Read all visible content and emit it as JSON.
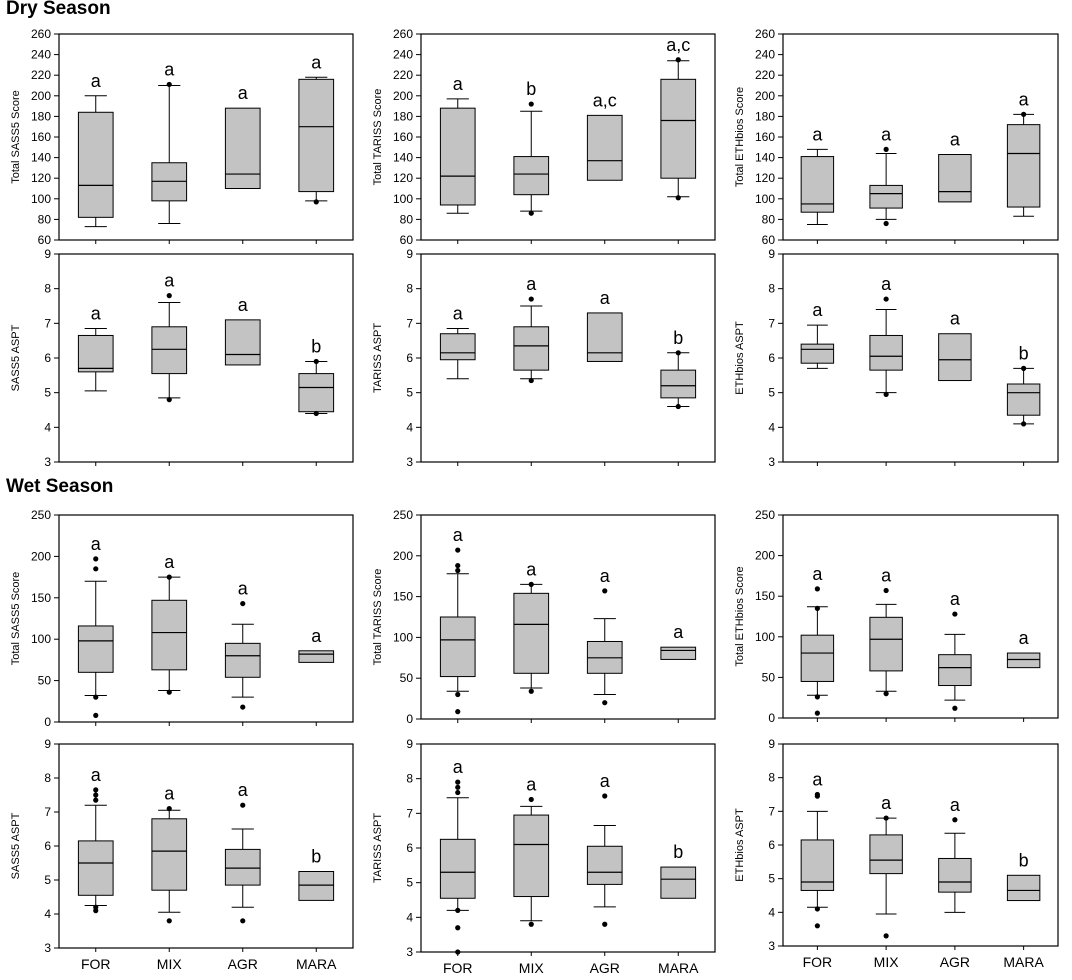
{
  "sections": {
    "dry": "Dry Season",
    "wet": "Wet Season"
  },
  "chart_data": [
    {
      "id": "dry-sass5-total",
      "type": "boxplot",
      "season": "Dry Season",
      "ylabel": "Total SASS5 Score",
      "ylim": [
        60,
        260
      ],
      "ytick_step": 20,
      "xtick_labels": [
        "",
        "",
        "",
        ""
      ],
      "boxes": [
        {
          "category": "FOR",
          "min": 73,
          "q1": 82,
          "median": 113,
          "q3": 184,
          "max": 200,
          "outliers": [],
          "letter": "a"
        },
        {
          "category": "MIX",
          "min": 76,
          "q1": 98,
          "median": 117,
          "q3": 135,
          "max": 210,
          "outliers": [
            211
          ],
          "letter": "a"
        },
        {
          "category": "AGR",
          "min": 110,
          "q1": 110,
          "median": 124,
          "q3": 188,
          "max": 188,
          "outliers": [],
          "letter": "a"
        },
        {
          "category": "MARA",
          "min": 98,
          "q1": 107,
          "median": 170,
          "q3": 216,
          "max": 218,
          "outliers": [
            97
          ],
          "letter": "a"
        }
      ]
    },
    {
      "id": "dry-tariss-total",
      "type": "boxplot",
      "season": "Dry Season",
      "ylabel": "Total TARISS Score",
      "ylim": [
        60,
        260
      ],
      "ytick_step": 20,
      "xtick_labels": [
        "",
        "",
        "",
        ""
      ],
      "boxes": [
        {
          "category": "FOR",
          "min": 86,
          "q1": 94,
          "median": 122,
          "q3": 188,
          "max": 197,
          "outliers": [],
          "letter": "a"
        },
        {
          "category": "MIX",
          "min": 88,
          "q1": 104,
          "median": 124,
          "q3": 141,
          "max": 185,
          "outliers": [
            192,
            86
          ],
          "letter": "b"
        },
        {
          "category": "AGR",
          "min": 118,
          "q1": 118,
          "median": 137,
          "q3": 181,
          "max": 181,
          "outliers": [],
          "letter": "a,c"
        },
        {
          "category": "MARA",
          "min": 102,
          "q1": 120,
          "median": 176,
          "q3": 216,
          "max": 234,
          "outliers": [
            235,
            101
          ],
          "letter": "a,c"
        }
      ]
    },
    {
      "id": "dry-ethbios-total",
      "type": "boxplot",
      "season": "Dry Season",
      "ylabel": "Total ETHbios Score",
      "ylim": [
        60,
        260
      ],
      "ytick_step": 20,
      "xtick_labels": [
        "",
        "",
        "",
        ""
      ],
      "boxes": [
        {
          "category": "FOR",
          "min": 75,
          "q1": 87,
          "median": 95,
          "q3": 141,
          "max": 148,
          "outliers": [],
          "letter": "a"
        },
        {
          "category": "MIX",
          "min": 80,
          "q1": 91,
          "median": 105,
          "q3": 113,
          "max": 144,
          "outliers": [
            148,
            76
          ],
          "letter": "a"
        },
        {
          "category": "AGR",
          "min": 97,
          "q1": 97,
          "median": 107,
          "q3": 143,
          "max": 143,
          "outliers": [],
          "letter": "a"
        },
        {
          "category": "MARA",
          "min": 83,
          "q1": 92,
          "median": 144,
          "q3": 172,
          "max": 182,
          "outliers": [
            182
          ],
          "letter": "a"
        }
      ]
    },
    {
      "id": "dry-sass5-aspt",
      "type": "boxplot",
      "season": "Dry Season",
      "ylabel": "SASS5 ASPT",
      "ylim": [
        3,
        9
      ],
      "ytick_step": 1,
      "xtick_labels": [
        "",
        "",
        "",
        ""
      ],
      "boxes": [
        {
          "category": "FOR",
          "min": 5.05,
          "q1": 5.6,
          "median": 5.7,
          "q3": 6.65,
          "max": 6.85,
          "outliers": [],
          "letter": "a"
        },
        {
          "category": "MIX",
          "min": 4.85,
          "q1": 5.55,
          "median": 6.25,
          "q3": 6.9,
          "max": 7.6,
          "outliers": [
            7.8,
            4.8
          ],
          "letter": "a"
        },
        {
          "category": "AGR",
          "min": 5.8,
          "q1": 5.8,
          "median": 6.1,
          "q3": 7.1,
          "max": 7.1,
          "outliers": [],
          "letter": "a"
        },
        {
          "category": "MARA",
          "min": 4.4,
          "q1": 4.45,
          "median": 5.15,
          "q3": 5.55,
          "max": 5.9,
          "outliers": [
            5.9,
            4.4
          ],
          "letter": "b"
        }
      ]
    },
    {
      "id": "dry-tariss-aspt",
      "type": "boxplot",
      "season": "Dry Season",
      "ylabel": "TARISS ASPT",
      "ylim": [
        3,
        9
      ],
      "ytick_step": 1,
      "xtick_labels": [
        "",
        "",
        "",
        ""
      ],
      "boxes": [
        {
          "category": "FOR",
          "min": 5.4,
          "q1": 5.95,
          "median": 6.15,
          "q3": 6.7,
          "max": 6.85,
          "outliers": [],
          "letter": "a"
        },
        {
          "category": "MIX",
          "min": 5.4,
          "q1": 5.65,
          "median": 6.35,
          "q3": 6.9,
          "max": 7.5,
          "outliers": [
            7.7,
            5.35
          ],
          "letter": "a"
        },
        {
          "category": "AGR",
          "min": 5.9,
          "q1": 5.9,
          "median": 6.15,
          "q3": 7.3,
          "max": 7.3,
          "outliers": [],
          "letter": "a"
        },
        {
          "category": "MARA",
          "min": 4.6,
          "q1": 4.85,
          "median": 5.2,
          "q3": 5.65,
          "max": 6.15,
          "outliers": [
            6.15,
            4.6
          ],
          "letter": "b"
        }
      ]
    },
    {
      "id": "dry-ethbios-aspt",
      "type": "boxplot",
      "season": "Dry Season",
      "ylabel": "ETHbios ASPT",
      "ylim": [
        3,
        9
      ],
      "ytick_step": 1,
      "xtick_labels": [
        "",
        "",
        "",
        ""
      ],
      "boxes": [
        {
          "category": "FOR",
          "min": 5.7,
          "q1": 5.85,
          "median": 6.25,
          "q3": 6.4,
          "max": 6.95,
          "outliers": [],
          "letter": "a"
        },
        {
          "category": "MIX",
          "min": 5.0,
          "q1": 5.65,
          "median": 6.05,
          "q3": 6.65,
          "max": 7.4,
          "outliers": [
            7.7,
            4.95
          ],
          "letter": "a"
        },
        {
          "category": "AGR",
          "min": 5.35,
          "q1": 5.35,
          "median": 5.95,
          "q3": 6.7,
          "max": 6.7,
          "outliers": [],
          "letter": "a"
        },
        {
          "category": "MARA",
          "min": 4.1,
          "q1": 4.35,
          "median": 5.0,
          "q3": 5.25,
          "max": 5.7,
          "outliers": [
            5.7,
            4.1
          ],
          "letter": "b"
        }
      ]
    },
    {
      "id": "wet-sass5-total",
      "type": "boxplot",
      "season": "Wet Season",
      "ylabel": "Total SASS5 Score",
      "ylim": [
        0,
        250
      ],
      "ytick_step": 50,
      "xtick_labels": [
        "",
        "",
        "",
        ""
      ],
      "boxes": [
        {
          "category": "FOR",
          "min": 32,
          "q1": 60,
          "median": 98,
          "q3": 116,
          "max": 170,
          "outliers": [
            197,
            185,
            30,
            8
          ],
          "letter": "a"
        },
        {
          "category": "MIX",
          "min": 38,
          "q1": 63,
          "median": 108,
          "q3": 147,
          "max": 175,
          "outliers": [
            175,
            36
          ],
          "letter": "a"
        },
        {
          "category": "AGR",
          "min": 30,
          "q1": 54,
          "median": 80,
          "q3": 95,
          "max": 118,
          "outliers": [
            143,
            18
          ],
          "letter": "a"
        },
        {
          "category": "MARA",
          "min": 72,
          "q1": 72,
          "median": 82,
          "q3": 86,
          "max": 86,
          "outliers": [],
          "letter": "a"
        }
      ]
    },
    {
      "id": "wet-tariss-total",
      "type": "boxplot",
      "season": "Wet Season",
      "ylabel": "Total TARISS Score",
      "ylim": [
        0,
        250
      ],
      "ytick_step": 50,
      "xtick_labels": [
        "",
        "",
        "",
        ""
      ],
      "boxes": [
        {
          "category": "FOR",
          "min": 34,
          "q1": 52,
          "median": 97,
          "q3": 125,
          "max": 178,
          "outliers": [
            207,
            188,
            182,
            30,
            9
          ],
          "letter": "a"
        },
        {
          "category": "MIX",
          "min": 38,
          "q1": 56,
          "median": 116,
          "q3": 154,
          "max": 165,
          "outliers": [
            165,
            34
          ],
          "letter": "a"
        },
        {
          "category": "AGR",
          "min": 30,
          "q1": 56,
          "median": 75,
          "q3": 95,
          "max": 123,
          "outliers": [
            157,
            20
          ],
          "letter": "a"
        },
        {
          "category": "MARA",
          "min": 73,
          "q1": 73,
          "median": 84,
          "q3": 88,
          "max": 88,
          "outliers": [],
          "letter": "a"
        }
      ]
    },
    {
      "id": "wet-ethbios-total",
      "type": "boxplot",
      "season": "Wet Season",
      "ylabel": "Total ETHbios Score",
      "ylim": [
        0,
        250
      ],
      "ytick_step": 50,
      "xtick_labels": [
        "",
        "",
        "",
        ""
      ],
      "boxes": [
        {
          "category": "FOR",
          "min": 28,
          "q1": 45,
          "median": 80,
          "q3": 102,
          "max": 137,
          "outliers": [
            159,
            135,
            26,
            6
          ],
          "letter": "a"
        },
        {
          "category": "MIX",
          "min": 33,
          "q1": 58,
          "median": 97,
          "q3": 124,
          "max": 140,
          "outliers": [
            157,
            30
          ],
          "letter": "a"
        },
        {
          "category": "AGR",
          "min": 22,
          "q1": 40,
          "median": 62,
          "q3": 78,
          "max": 103,
          "outliers": [
            128,
            12
          ],
          "letter": "a"
        },
        {
          "category": "MARA",
          "min": 62,
          "q1": 62,
          "median": 72,
          "q3": 80,
          "max": 80,
          "outliers": [],
          "letter": "a"
        }
      ]
    },
    {
      "id": "wet-sass5-aspt",
      "type": "boxplot",
      "season": "Wet Season",
      "ylabel": "SASS5 ASPT",
      "ylim": [
        3,
        9
      ],
      "ytick_step": 1,
      "xtick_labels": [
        "FOR",
        "MIX",
        "AGR",
        "MARA"
      ],
      "boxes": [
        {
          "category": "FOR",
          "min": 4.25,
          "q1": 4.55,
          "median": 5.5,
          "q3": 6.15,
          "max": 7.2,
          "outliers": [
            7.65,
            7.5,
            7.35,
            4.2,
            4.1
          ],
          "letter": "a"
        },
        {
          "category": "MIX",
          "min": 4.05,
          "q1": 4.7,
          "median": 5.85,
          "q3": 6.8,
          "max": 7.05,
          "outliers": [
            7.1,
            3.8
          ],
          "letter": "a"
        },
        {
          "category": "AGR",
          "min": 4.2,
          "q1": 4.85,
          "median": 5.35,
          "q3": 5.9,
          "max": 6.5,
          "outliers": [
            7.2,
            3.8
          ],
          "letter": "a"
        },
        {
          "category": "MARA",
          "min": 4.4,
          "q1": 4.4,
          "median": 4.85,
          "q3": 5.25,
          "max": 5.25,
          "outliers": [],
          "letter": "b"
        }
      ]
    },
    {
      "id": "wet-tariss-aspt",
      "type": "boxplot",
      "season": "Wet Season",
      "ylabel": "TARISS ASPT",
      "ylim": [
        3,
        9
      ],
      "ytick_step": 1,
      "xtick_labels": [
        "FOR",
        "MIX",
        "AGR",
        "MARA"
      ],
      "boxes": [
        {
          "category": "FOR",
          "min": 4.2,
          "q1": 4.55,
          "median": 5.3,
          "q3": 6.25,
          "max": 7.45,
          "outliers": [
            7.9,
            7.75,
            7.6,
            4.2,
            3.7,
            3.0
          ],
          "letter": "a"
        },
        {
          "category": "MIX",
          "min": 3.9,
          "q1": 4.6,
          "median": 6.1,
          "q3": 6.95,
          "max": 7.2,
          "outliers": [
            7.4,
            3.8
          ],
          "letter": "a"
        },
        {
          "category": "AGR",
          "min": 4.3,
          "q1": 4.95,
          "median": 5.3,
          "q3": 6.05,
          "max": 6.65,
          "outliers": [
            7.5,
            3.8
          ],
          "letter": "a"
        },
        {
          "category": "MARA",
          "min": 4.55,
          "q1": 4.55,
          "median": 5.1,
          "q3": 5.45,
          "max": 5.45,
          "outliers": [],
          "letter": "b"
        }
      ]
    },
    {
      "id": "wet-ethbios-aspt",
      "type": "boxplot",
      "season": "Wet Season",
      "ylabel": "ETHbios ASPT",
      "ylim": [
        3,
        9
      ],
      "ytick_step": 1,
      "xtick_labels": [
        "FOR",
        "MIX",
        "AGR",
        "MARA"
      ],
      "boxes": [
        {
          "category": "FOR",
          "min": 4.15,
          "q1": 4.65,
          "median": 4.9,
          "q3": 6.15,
          "max": 7.0,
          "outliers": [
            7.5,
            7.45,
            4.1,
            3.6
          ],
          "letter": "a"
        },
        {
          "category": "MIX",
          "min": 3.95,
          "q1": 5.15,
          "median": 5.55,
          "q3": 6.3,
          "max": 6.8,
          "outliers": [
            6.8,
            3.3
          ],
          "letter": "a"
        },
        {
          "category": "AGR",
          "min": 4.0,
          "q1": 4.6,
          "median": 4.9,
          "q3": 5.6,
          "max": 6.35,
          "outliers": [
            6.75
          ],
          "letter": "a"
        },
        {
          "category": "MARA",
          "min": 4.35,
          "q1": 4.35,
          "median": 4.65,
          "q3": 5.1,
          "max": 5.1,
          "outliers": [],
          "letter": "b"
        }
      ]
    }
  ]
}
